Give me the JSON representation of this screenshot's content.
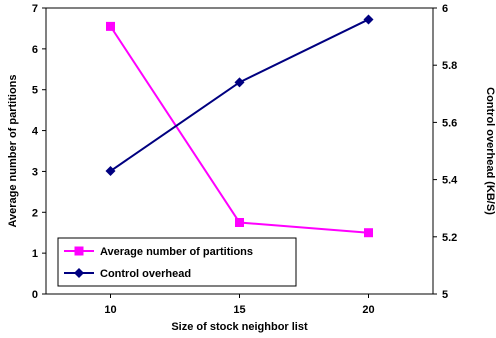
{
  "chart_data": {
    "type": "line",
    "x": [
      10,
      15,
      20
    ],
    "xlabel": "Size of stock neighbor list",
    "x_tick_labels": [
      "10",
      "15",
      "20"
    ],
    "xlim": [
      7.5,
      22.5
    ],
    "ylabel_left": "Average number of partitions",
    "ylim_left": [
      0,
      7
    ],
    "y_left_ticks": [
      0,
      1,
      2,
      3,
      4,
      5,
      6,
      7
    ],
    "ylabel_right": "Control overhead (KB/S)",
    "ylim_right": [
      5,
      6
    ],
    "y_right_ticks": [
      5,
      5.2,
      5.4,
      5.6,
      5.8,
      6
    ],
    "y_right_tick_labels": [
      "5",
      "5.2",
      "5.4",
      "5.6",
      "5.8",
      "6"
    ],
    "grid": false,
    "legend_position": "bottom-left",
    "series": [
      {
        "name": "Average number of partitions",
        "axis": "left",
        "values": [
          6.55,
          1.75,
          1.5
        ],
        "color": "#ff00ff",
        "marker": "square"
      },
      {
        "name": "Control overhead",
        "axis": "right",
        "values": [
          5.43,
          5.74,
          5.96
        ],
        "color": "#000080",
        "marker": "diamond"
      }
    ]
  }
}
